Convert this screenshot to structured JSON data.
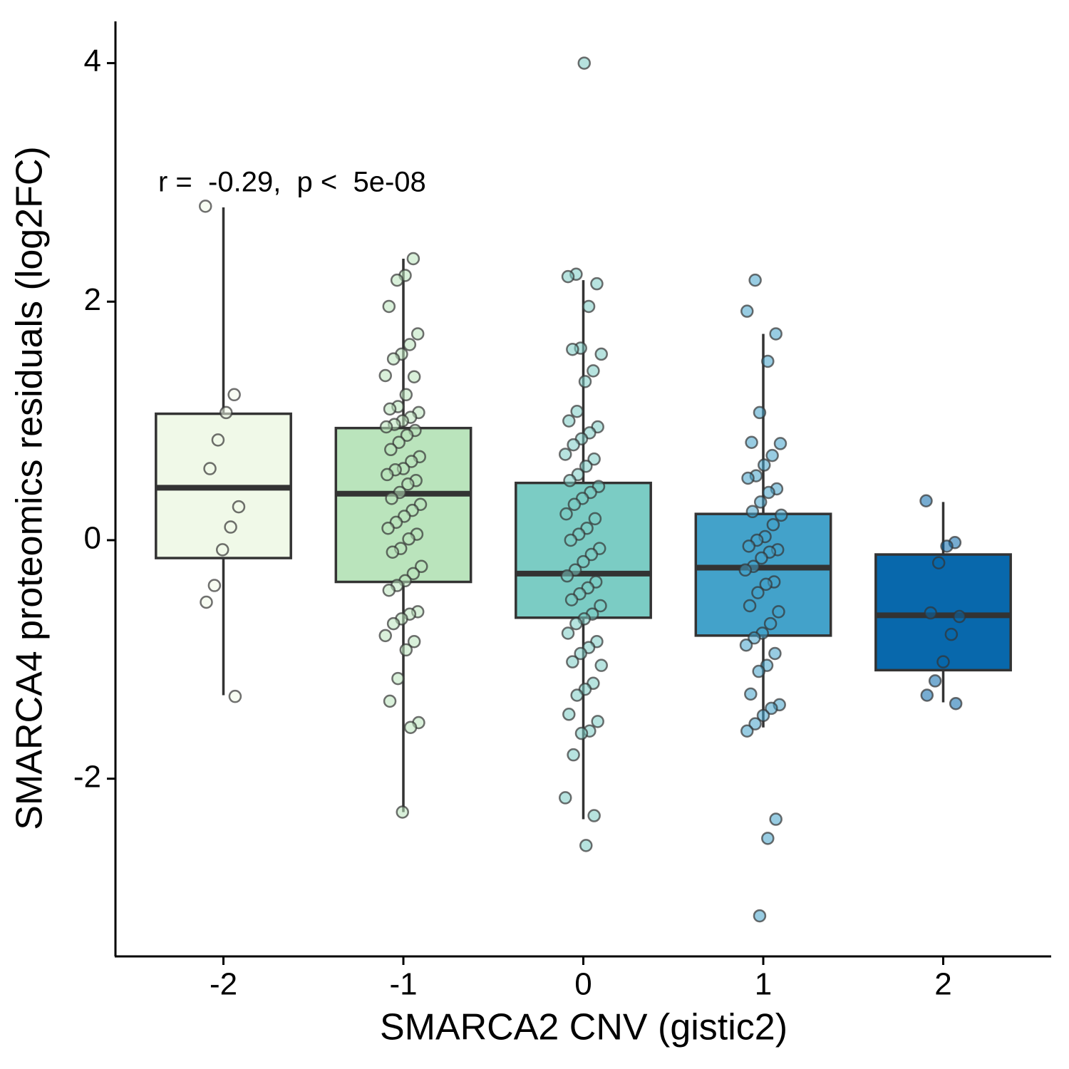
{
  "chart_data": {
    "type": "box",
    "xlabel": "SMARCA2 CNV (gistic2)",
    "ylabel": "SMARCA4 proteomics residuals (log2FC)",
    "annotation": "r =  -0.29,  p <  5e-08",
    "categories": [
      "-2",
      "-1",
      "0",
      "1",
      "2"
    ],
    "ylim": [
      -3.49,
      4.35
    ],
    "yticks": [
      -2,
      0,
      2,
      4
    ],
    "boxes": [
      {
        "color": "#f0f9e8",
        "whisker_low": -1.3,
        "q1": -0.15,
        "median": 0.44,
        "q3": 1.06,
        "whisker_high": 2.79,
        "points": [
          2.8,
          1.22,
          1.07,
          0.84,
          0.6,
          0.28,
          0.11,
          -0.08,
          -0.38,
          -0.52,
          -1.31
        ]
      },
      {
        "color": "#bae4bc",
        "whisker_low": -2.28,
        "q1": -0.35,
        "median": 0.39,
        "q3": 0.94,
        "whisker_high": 2.36,
        "points": [
          2.36,
          2.22,
          2.18,
          1.96,
          1.73,
          1.64,
          1.56,
          1.52,
          1.38,
          1.37,
          1.22,
          1.12,
          1.1,
          1.07,
          1.03,
          1.0,
          0.97,
          0.95,
          0.92,
          0.88,
          0.82,
          0.76,
          0.7,
          0.66,
          0.6,
          0.59,
          0.55,
          0.5,
          0.47,
          0.4,
          0.35,
          0.3,
          0.25,
          0.2,
          0.15,
          0.1,
          0.05,
          0.01,
          -0.07,
          -0.1,
          -0.22,
          -0.28,
          -0.34,
          -0.38,
          -0.42,
          -0.6,
          -0.62,
          -0.66,
          -0.7,
          -0.8,
          -0.85,
          -0.92,
          -1.16,
          -1.35,
          -1.53,
          -1.57,
          -2.28
        ]
      },
      {
        "color": "#7bccc4",
        "whisker_low": -2.34,
        "q1": -0.65,
        "median": -0.28,
        "q3": 0.48,
        "whisker_high": 2.18,
        "points": [
          4.0,
          2.23,
          2.21,
          2.15,
          1.96,
          1.61,
          1.6,
          1.56,
          1.42,
          1.33,
          1.08,
          1.0,
          0.95,
          0.9,
          0.85,
          0.8,
          0.72,
          0.68,
          0.62,
          0.55,
          0.5,
          0.45,
          0.4,
          0.35,
          0.3,
          0.22,
          0.18,
          0.1,
          0.05,
          0.0,
          -0.07,
          -0.12,
          -0.18,
          -0.25,
          -0.3,
          -0.35,
          -0.4,
          -0.45,
          -0.5,
          -0.55,
          -0.62,
          -0.66,
          -0.7,
          -0.78,
          -0.85,
          -0.9,
          -0.95,
          -1.02,
          -1.05,
          -1.2,
          -1.25,
          -1.3,
          -1.46,
          -1.52,
          -1.6,
          -1.62,
          -1.8,
          -2.16,
          -2.31,
          -2.56
        ]
      },
      {
        "color": "#43a2ca",
        "whisker_low": -1.57,
        "q1": -0.8,
        "median": -0.23,
        "q3": 0.22,
        "whisker_high": 1.73,
        "points": [
          2.18,
          1.92,
          1.73,
          1.5,
          1.07,
          0.82,
          0.81,
          0.71,
          0.63,
          0.54,
          0.52,
          0.43,
          0.4,
          0.32,
          0.24,
          0.21,
          0.13,
          0.03,
          0.0,
          -0.05,
          -0.08,
          -0.1,
          -0.15,
          -0.22,
          -0.25,
          -0.35,
          -0.37,
          -0.44,
          -0.55,
          -0.6,
          -0.7,
          -0.78,
          -0.82,
          -0.88,
          -0.95,
          -1.05,
          -1.1,
          -1.29,
          -1.38,
          -1.41,
          -1.47,
          -1.54,
          -1.6,
          -2.34,
          -2.5,
          -3.15
        ]
      },
      {
        "color": "#0868ac",
        "whisker_low": -1.36,
        "q1": -1.09,
        "median": -0.63,
        "q3": -0.12,
        "whisker_high": 0.32,
        "points": [
          0.33,
          -0.02,
          -0.05,
          -0.19,
          -0.61,
          -0.64,
          -0.79,
          -1.02,
          -1.18,
          -1.3,
          -1.37
        ]
      }
    ]
  }
}
